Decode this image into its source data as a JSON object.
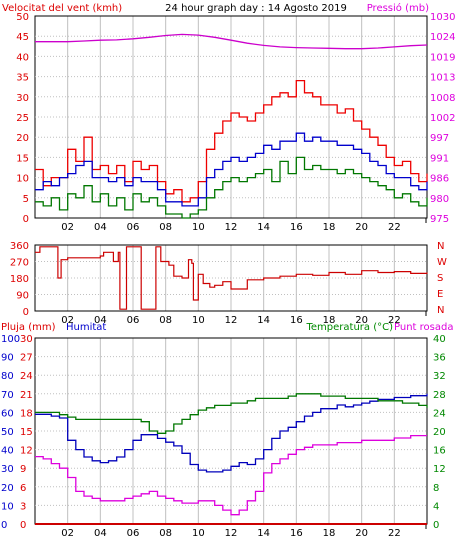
{
  "header": {
    "wind_label": "Velocitat del vent (kmh)",
    "title": "24 hour graph day : 14 Agosto 2019",
    "pressure_label": "Pressió (mb)"
  },
  "direction_panel": {
    "compass_labels": [
      "N",
      "W",
      "S",
      "E",
      "N"
    ]
  },
  "bottom_header": {
    "rain_label": "Pluja (mm)",
    "humidity_label": "Humitat",
    "temperature_label": "Temperatura (°C)",
    "dewpoint_label": "Punt rosada"
  },
  "colors": {
    "wind_gust": "#ee0000",
    "wind_avg": "#0000cc",
    "wind_min": "#007700",
    "pressure": "#cc00cc",
    "direction": "#cc0000",
    "rain": "#cc0000",
    "humidity": "#0000bb",
    "temperature": "#007700",
    "dewpoint": "#dd00dd",
    "blue_text": "#0000cc",
    "green_text": "#008800",
    "magenta_text": "#dd00dd",
    "red_text": "#dd0000",
    "grid": "#c0c0c0"
  },
  "chart_data": [
    {
      "type": "line",
      "x_ticks": [
        "02",
        "04",
        "06",
        "08",
        "10",
        "12",
        "14",
        "16",
        "18",
        "20",
        "22"
      ],
      "y_left": {
        "label": "Velocitat del vent (kmh)",
        "range": [
          0,
          50
        ],
        "ticks": [
          "0",
          "5",
          "10",
          "15",
          "20",
          "25",
          "30",
          "35",
          "40",
          "45",
          "50"
        ]
      },
      "y_right": {
        "label": "Pressió (mb)",
        "range": [
          975,
          1030
        ],
        "ticks": [
          "975",
          "980",
          "986",
          "991",
          "997",
          "1002",
          "1008",
          "1013",
          "1019",
          "1024",
          "1030"
        ]
      },
      "series": [
        {
          "key": "gust",
          "axis": "left",
          "x": [
            0,
            0.5,
            1,
            1.5,
            2,
            2.5,
            3,
            3.5,
            4,
            4.5,
            5,
            5.5,
            6,
            6.5,
            7,
            7.5,
            8,
            8.5,
            9,
            9.5,
            10,
            10.5,
            11,
            11.5,
            12,
            12.5,
            13,
            13.5,
            14,
            14.5,
            15,
            15.5,
            16,
            16.5,
            17,
            17.5,
            18,
            18.5,
            19,
            19.5,
            20,
            20.5,
            21,
            21.5,
            22,
            22.5,
            23,
            23.5,
            24
          ],
          "y": [
            12,
            8,
            10,
            10,
            17,
            14,
            20,
            12,
            13,
            11,
            13,
            9,
            14,
            12,
            13,
            9,
            6,
            7,
            4,
            5,
            9,
            17,
            21,
            24,
            26,
            25,
            24,
            26,
            28,
            30,
            31,
            30,
            34,
            31,
            30,
            28,
            28,
            26,
            27,
            24,
            22,
            20,
            18,
            15,
            13,
            14,
            11,
            9,
            11
          ]
        },
        {
          "key": "avg",
          "axis": "left",
          "x": [
            0,
            0.5,
            1,
            1.5,
            2,
            2.5,
            3,
            3.5,
            4,
            4.5,
            5,
            5.5,
            6,
            6.5,
            7,
            7.5,
            8,
            8.5,
            9,
            9.5,
            10,
            10.5,
            11,
            11.5,
            12,
            12.5,
            13,
            13.5,
            14,
            14.5,
            15,
            15.5,
            16,
            16.5,
            17,
            17.5,
            18,
            18.5,
            19,
            19.5,
            20,
            20.5,
            21,
            21.5,
            22,
            22.5,
            23,
            23.5,
            24
          ],
          "y": [
            7,
            9,
            8,
            10,
            11,
            13,
            14,
            10,
            10,
            9,
            10,
            8,
            10,
            9,
            9,
            7,
            4,
            4,
            3,
            3,
            5,
            10,
            12,
            14,
            15,
            14,
            15,
            16,
            18,
            17,
            19,
            19,
            21,
            19,
            20,
            19,
            19,
            18,
            18,
            17,
            16,
            14,
            13,
            11,
            10,
            10,
            8,
            7,
            9
          ]
        },
        {
          "key": "min",
          "axis": "left",
          "x": [
            0,
            0.5,
            1,
            1.5,
            2,
            2.5,
            3,
            3.5,
            4,
            4.5,
            5,
            5.5,
            6,
            6.5,
            7,
            7.5,
            8,
            8.5,
            9,
            9.5,
            10,
            10.5,
            11,
            11.5,
            12,
            12.5,
            13,
            13.5,
            14,
            14.5,
            15,
            15.5,
            16,
            16.5,
            17,
            17.5,
            18,
            18.5,
            19,
            19.5,
            20,
            20.5,
            21,
            21.5,
            22,
            22.5,
            23,
            23.5,
            24
          ],
          "y": [
            4,
            3,
            5,
            2,
            6,
            5,
            8,
            4,
            6,
            3,
            5,
            2,
            6,
            4,
            5,
            3,
            1,
            1,
            0,
            1,
            2,
            5,
            7,
            9,
            10,
            9,
            10,
            11,
            12,
            9,
            14,
            11,
            15,
            12,
            13,
            12,
            12,
            11,
            12,
            11,
            10,
            9,
            8,
            7,
            5,
            6,
            4,
            3,
            5
          ]
        },
        {
          "key": "pressure",
          "axis": "right",
          "x": [
            0,
            1,
            2,
            3,
            4,
            5,
            6,
            7,
            8,
            9,
            10,
            11,
            12,
            13,
            14,
            15,
            16,
            17,
            18,
            19,
            20,
            21,
            22,
            23,
            24
          ],
          "y": [
            1023,
            1023,
            1023,
            1023.2,
            1023.4,
            1023.5,
            1023.8,
            1024.2,
            1024.7,
            1025,
            1024.8,
            1024.2,
            1023.4,
            1022.6,
            1022,
            1021.6,
            1021.4,
            1021.3,
            1021.2,
            1021.1,
            1021.1,
            1021.3,
            1021.6,
            1021.9,
            1022.1
          ]
        }
      ]
    },
    {
      "type": "line",
      "x_ticks": [
        "02",
        "04",
        "06",
        "08",
        "10",
        "12",
        "14",
        "16",
        "18",
        "20",
        "22"
      ],
      "y_left": {
        "range": [
          0,
          360
        ],
        "ticks": [
          "0",
          "90",
          "180",
          "270",
          "360"
        ]
      },
      "series": [
        {
          "key": "direction",
          "axis": "left",
          "x": [
            0,
            0.3,
            1.3,
            1.4,
            1.6,
            2,
            3,
            4,
            4.2,
            4.6,
            4.8,
            5.1,
            5.2,
            5.5,
            5.6,
            6.4,
            6.5,
            7.3,
            7.4,
            7.6,
            7.7,
            8.2,
            8.5,
            9,
            9.4,
            9.6,
            9.7,
            10,
            10.3,
            10.7,
            11,
            11.5,
            12,
            13,
            14,
            15,
            16,
            17,
            18,
            19,
            20,
            21,
            22,
            23,
            24
          ],
          "y": [
            320,
            350,
            350,
            180,
            280,
            290,
            290,
            300,
            320,
            320,
            270,
            320,
            10,
            10,
            350,
            350,
            10,
            10,
            350,
            350,
            270,
            250,
            190,
            180,
            280,
            260,
            60,
            200,
            150,
            130,
            140,
            160,
            120,
            170,
            180,
            190,
            200,
            195,
            210,
            200,
            220,
            210,
            215,
            205,
            210
          ]
        }
      ]
    },
    {
      "type": "line",
      "x_ticks": [
        "02",
        "04",
        "06",
        "08",
        "10",
        "12",
        "14",
        "16",
        "18",
        "20",
        "22"
      ],
      "y_left_outer": {
        "label": "Pluja (mm)",
        "range": [
          0,
          30
        ],
        "ticks": [
          "0",
          "3",
          "6",
          "9",
          "12",
          "15",
          "18",
          "21",
          "24",
          "27",
          "30"
        ]
      },
      "y_left_inner": {
        "label": "Humitat",
        "range": [
          0,
          100
        ],
        "ticks": [
          "0",
          "10",
          "20",
          "30",
          "40",
          "50",
          "60",
          "70",
          "80",
          "90",
          "100"
        ]
      },
      "y_right": {
        "label": "Temperatura (°C)",
        "range": [
          0,
          40
        ],
        "ticks": [
          "0",
          "4",
          "8",
          "12",
          "16",
          "20",
          "24",
          "28",
          "32",
          "36",
          "40"
        ]
      },
      "series": [
        {
          "key": "rain",
          "axis": "rain",
          "x": [
            0,
            24
          ],
          "y": [
            0,
            0
          ]
        },
        {
          "key": "humidity",
          "axis": "humidity",
          "x": [
            0,
            0.5,
            1,
            1.5,
            2,
            2.5,
            3,
            3.5,
            4,
            4.5,
            5,
            5.5,
            6,
            6.5,
            7,
            7.5,
            8,
            8.5,
            9,
            9.5,
            10,
            10.5,
            11,
            11.5,
            12,
            12.5,
            13,
            13.5,
            14,
            14.5,
            15,
            15.5,
            16,
            16.5,
            17,
            17.5,
            18,
            18.5,
            19,
            19.5,
            20,
            20.5,
            21,
            21.5,
            22,
            22.5,
            23,
            23.5,
            24
          ],
          "y": [
            59,
            59,
            58,
            57,
            45,
            40,
            36,
            34,
            33,
            34,
            36,
            40,
            45,
            48,
            48,
            46,
            44,
            42,
            38,
            32,
            29,
            28,
            28,
            29,
            31,
            33,
            32,
            35,
            40,
            46,
            50,
            52,
            55,
            58,
            60,
            62,
            62,
            64,
            63,
            64,
            65,
            66,
            67,
            67,
            68,
            68,
            69,
            69,
            70
          ]
        },
        {
          "key": "temperature",
          "axis": "temperature",
          "x": [
            0,
            0.5,
            1,
            1.5,
            2,
            2.5,
            3,
            3.5,
            4,
            4.5,
            5,
            5.5,
            6,
            6.5,
            7,
            7.5,
            8,
            8.5,
            9,
            9.5,
            10,
            10.5,
            11,
            11.5,
            12,
            12.5,
            13,
            13.5,
            14,
            14.5,
            15,
            15.5,
            16,
            16.5,
            17,
            17.5,
            18,
            18.5,
            19,
            19.5,
            20,
            20.5,
            21,
            21.5,
            22,
            22.5,
            23,
            23.5,
            24
          ],
          "y": [
            24,
            24,
            24,
            23.5,
            23,
            22.5,
            22.5,
            22.5,
            22.5,
            22.5,
            22.5,
            22.5,
            22.5,
            22,
            20,
            19.5,
            20,
            21.5,
            22.5,
            23.5,
            24.5,
            25,
            25.5,
            25.5,
            26,
            26,
            26.5,
            27,
            27,
            27,
            27,
            27.5,
            28,
            28,
            28,
            27.5,
            27.5,
            27.5,
            27,
            27,
            27,
            27,
            26.5,
            26.5,
            26.5,
            26,
            26,
            25.5,
            25
          ]
        },
        {
          "key": "dewpoint",
          "axis": "temperature",
          "x": [
            0,
            0.5,
            1,
            1.5,
            2,
            2.5,
            3,
            3.5,
            4,
            4.5,
            5,
            5.5,
            6,
            6.5,
            7,
            7.5,
            8,
            8.5,
            9,
            9.5,
            10,
            10.5,
            11,
            11.5,
            12,
            12.5,
            13,
            13.5,
            14,
            14.5,
            15,
            15.5,
            16,
            16.5,
            17,
            17.5,
            18,
            18.5,
            19,
            19.5,
            20,
            20.5,
            21,
            21.5,
            22,
            22.5,
            23,
            23.5,
            24
          ],
          "y": [
            14.5,
            14,
            13,
            12,
            10,
            7,
            6,
            5.5,
            5,
            5,
            5,
            5.5,
            6,
            6.5,
            7,
            6,
            5.5,
            5,
            4.5,
            4.5,
            5,
            5,
            4,
            3,
            2,
            3,
            5,
            7,
            11,
            13,
            14,
            15,
            16,
            16.5,
            17,
            17,
            17,
            17.5,
            17.5,
            17.5,
            18,
            18,
            18,
            18,
            18.5,
            18.5,
            19,
            19,
            19
          ]
        }
      ]
    }
  ]
}
